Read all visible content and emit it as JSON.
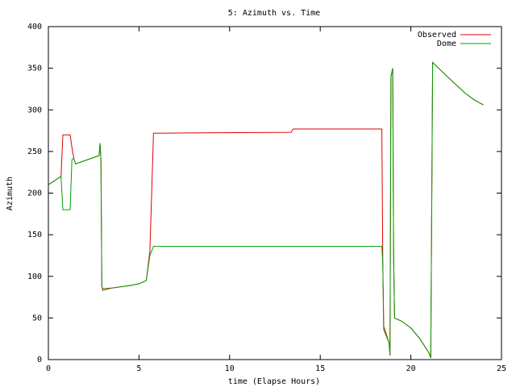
{
  "chart_data": {
    "type": "line",
    "title": "5: Azimuth vs. Time",
    "x_label": "time (Elapse Hours)",
    "y_label": "Azimuth",
    "x": [
      0,
      0.7,
      0.8,
      1.2,
      1.3,
      1.4,
      1.5,
      2.8,
      2.85,
      2.9,
      2.95,
      3.0,
      3.5,
      4.5,
      5.0,
      5.4,
      5.6,
      5.8,
      13.4,
      13.5,
      18.4,
      18.45,
      18.5,
      18.8,
      18.85,
      18.9,
      19.0,
      19.05,
      19.1,
      19.5,
      20.0,
      20.5,
      21.0,
      21.1,
      21.2,
      22.0,
      22.5,
      23.0,
      23.5,
      24.0
    ],
    "series": [
      {
        "name": "Observed",
        "color": "#e00000",
        "values": [
          210,
          220,
          270,
          270,
          255,
          242,
          235,
          245,
          260,
          240,
          88,
          85,
          86,
          89,
          91,
          95,
          130,
          272,
          273,
          277,
          277,
          115,
          40,
          20,
          5,
          340,
          350,
          125,
          50,
          46,
          38,
          25,
          8,
          2,
          357,
          340,
          330,
          320,
          312,
          306
        ]
      },
      {
        "name": "Dome",
        "color": "#00a000",
        "values": [
          210,
          220,
          180,
          180,
          240,
          242,
          235,
          245,
          260,
          240,
          88,
          83,
          86,
          89,
          91,
          95,
          125,
          136,
          136,
          136,
          136,
          115,
          36,
          20,
          5,
          340,
          350,
          125,
          50,
          46,
          38,
          25,
          8,
          2,
          357,
          340,
          330,
          320,
          312,
          306
        ]
      }
    ],
    "xlim": [
      0,
      25
    ],
    "xticks": [
      0,
      5,
      10,
      15,
      20,
      25
    ],
    "ylim": [
      0,
      400
    ],
    "yticks": [
      0,
      50,
      100,
      150,
      200,
      250,
      300,
      350,
      400
    ],
    "legend": "top-right",
    "grid": false
  }
}
